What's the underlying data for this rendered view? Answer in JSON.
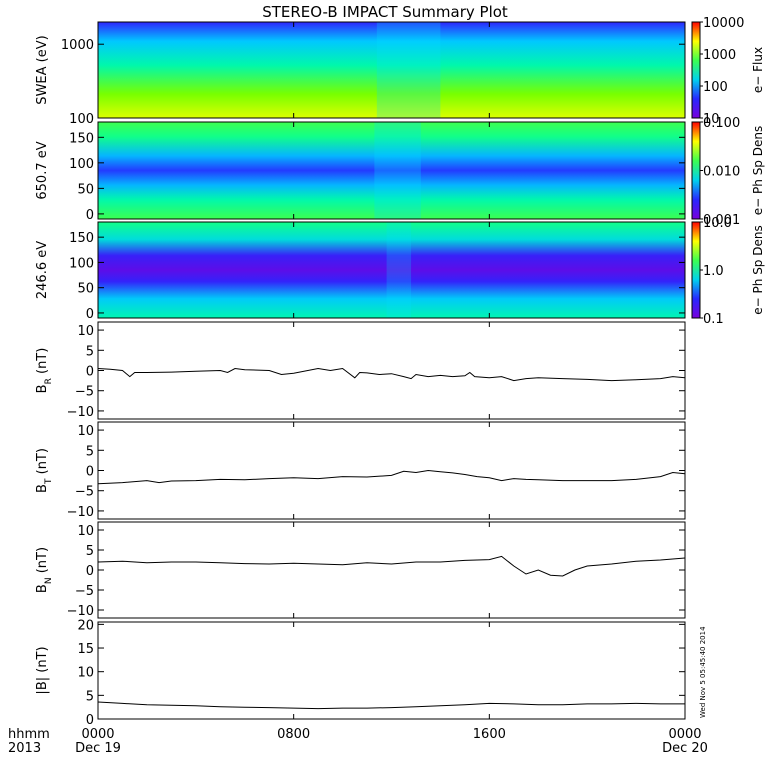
{
  "figure": {
    "title": "STEREO-B IMPACT Summary Plot",
    "stamp": "Wed Nov  5 05:45:40 2014"
  },
  "x_axis": {
    "row1_label": "hhmm",
    "row2_label": "2013",
    "ticks": [
      {
        "hours": 0,
        "label": "0000",
        "date": "Dec 19"
      },
      {
        "hours": 8,
        "label": "0800",
        "date": ""
      },
      {
        "hours": 16,
        "label": "1600",
        "date": ""
      },
      {
        "hours": 24,
        "label": "0000",
        "date": "Dec 20"
      }
    ],
    "range_hours": [
      0,
      24
    ]
  },
  "chart_data": [
    {
      "type": "heatmap",
      "ylabel": "SWEA (eV)",
      "y_scale": "log",
      "ylim": [
        100,
        2000
      ],
      "yticks": [
        {
          "v": 100,
          "label": "100"
        },
        {
          "v": 1000,
          "label": "1000"
        }
      ],
      "colorbar": {
        "label": "e− Flux",
        "scale": "log",
        "range": [
          10,
          10000
        ],
        "ticks": [
          {
            "v": 10,
            "label": "10"
          },
          {
            "v": 100,
            "label": "100"
          },
          {
            "v": 1000,
            "label": "1000"
          },
          {
            "v": 10000,
            "label": "10000"
          }
        ]
      }
    },
    {
      "type": "heatmap",
      "ylabel": "650.7 eV",
      "y_scale": "linear",
      "ylim": [
        -10,
        180
      ],
      "yticks": [
        {
          "v": 0,
          "label": "0"
        },
        {
          "v": 50,
          "label": "50"
        },
        {
          "v": 100,
          "label": "100"
        },
        {
          "v": 150,
          "label": "150"
        }
      ],
      "colorbar": {
        "label": "e− Ph Sp Dens",
        "scale": "log",
        "range": [
          0.001,
          0.1
        ],
        "ticks": [
          {
            "v": 0.001,
            "label": "0.001"
          },
          {
            "v": 0.01,
            "label": "0.010"
          },
          {
            "v": 0.1,
            "label": "0.100"
          }
        ]
      }
    },
    {
      "type": "heatmap",
      "ylabel": "246.6 eV",
      "y_scale": "linear",
      "ylim": [
        -10,
        180
      ],
      "yticks": [
        {
          "v": 0,
          "label": "0"
        },
        {
          "v": 50,
          "label": "50"
        },
        {
          "v": 100,
          "label": "100"
        },
        {
          "v": 150,
          "label": "150"
        }
      ],
      "colorbar": {
        "label": "e− Ph Sp Dens",
        "scale": "log",
        "range": [
          0.1,
          10
        ],
        "ticks": [
          {
            "v": 0.1,
            "label": "0.1"
          },
          {
            "v": 1,
            "label": "1.0"
          },
          {
            "v": 10,
            "label": "10.0"
          }
        ]
      }
    },
    {
      "type": "line",
      "ylabel": "B",
      "ylabel_sub": "R",
      "ylabel_unit": " (nT)",
      "ylim": [
        -12,
        12
      ],
      "yticks": [
        {
          "v": -10,
          "label": "−10"
        },
        {
          "v": -5,
          "label": "−5"
        },
        {
          "v": 0,
          "label": "0"
        },
        {
          "v": 5,
          "label": "5"
        },
        {
          "v": 10,
          "label": "10"
        }
      ],
      "x": [
        0,
        0.5,
        1,
        1.3,
        1.5,
        2,
        3,
        4,
        5,
        5.3,
        5.6,
        6,
        7,
        7.5,
        8,
        9,
        9.5,
        10,
        10.5,
        10.7,
        11,
        11.5,
        12,
        12.5,
        12.8,
        13,
        13.5,
        14,
        14.5,
        15,
        15.2,
        15.4,
        16,
        16.5,
        17,
        17.5,
        18,
        19,
        20,
        21,
        22,
        23,
        23.5,
        24
      ],
      "y": [
        0.5,
        0.3,
        0,
        -1.5,
        -0.5,
        -0.5,
        -0.4,
        -0.2,
        0,
        -0.5,
        0.5,
        0.2,
        0,
        -1,
        -0.7,
        0.5,
        0,
        0.5,
        -1.8,
        -0.5,
        -0.6,
        -1,
        -0.8,
        -1.5,
        -2,
        -1,
        -1.5,
        -1.2,
        -1.5,
        -1.3,
        -0.5,
        -1.5,
        -1.8,
        -1.5,
        -2.5,
        -2,
        -1.8,
        -2,
        -2.2,
        -2.5,
        -2.3,
        -2,
        -1.5,
        -1.8
      ]
    },
    {
      "type": "line",
      "ylabel": "B",
      "ylabel_sub": "T",
      "ylabel_unit": " (nT)",
      "ylim": [
        -12,
        12
      ],
      "yticks": [
        {
          "v": -10,
          "label": "−10"
        },
        {
          "v": -5,
          "label": "−5"
        },
        {
          "v": 0,
          "label": "0"
        },
        {
          "v": 5,
          "label": "5"
        },
        {
          "v": 10,
          "label": "10"
        }
      ],
      "x": [
        0,
        1,
        2,
        2.5,
        3,
        4,
        5,
        6,
        7,
        8,
        9,
        10,
        11,
        12,
        12.5,
        13,
        13.5,
        14,
        14.5,
        15,
        15.5,
        16,
        16.5,
        17,
        17.5,
        18,
        19,
        20,
        21,
        22,
        23,
        23.5,
        24
      ],
      "y": [
        -3.3,
        -3,
        -2.5,
        -3,
        -2.6,
        -2.5,
        -2.2,
        -2.3,
        -2,
        -1.8,
        -2,
        -1.5,
        -1.6,
        -1.2,
        -0.2,
        -0.5,
        0,
        -0.3,
        -0.6,
        -1,
        -1.5,
        -1.8,
        -2.5,
        -2,
        -2.2,
        -2.3,
        -2.5,
        -2.5,
        -2.5,
        -2.2,
        -1.5,
        -0.5,
        -0.8
      ]
    },
    {
      "type": "line",
      "ylabel": "B",
      "ylabel_sub": "N",
      "ylabel_unit": " (nT)",
      "ylim": [
        -12,
        12
      ],
      "yticks": [
        {
          "v": -10,
          "label": "−10"
        },
        {
          "v": -5,
          "label": "−5"
        },
        {
          "v": 0,
          "label": "0"
        },
        {
          "v": 5,
          "label": "5"
        },
        {
          "v": 10,
          "label": "10"
        }
      ],
      "x": [
        0,
        1,
        2,
        3,
        4,
        5,
        6,
        7,
        8,
        9,
        10,
        11,
        12,
        13,
        14,
        15,
        16,
        16.5,
        17,
        17.5,
        18,
        18.5,
        19,
        19.5,
        20,
        21,
        22,
        23,
        24
      ],
      "y": [
        2,
        2.2,
        1.8,
        2,
        2,
        1.8,
        1.6,
        1.5,
        1.7,
        1.5,
        1.3,
        1.8,
        1.5,
        2,
        2,
        2.4,
        2.6,
        3.4,
        1,
        -1,
        0,
        -1.3,
        -1.5,
        0,
        1,
        1.5,
        2.2,
        2.5,
        3
      ]
    },
    {
      "type": "line",
      "ylabel": "|B| (nT)",
      "ylim": [
        0,
        20.5
      ],
      "yticks": [
        {
          "v": 0,
          "label": "0"
        },
        {
          "v": 5,
          "label": "5"
        },
        {
          "v": 10,
          "label": "10"
        },
        {
          "v": 15,
          "label": "15"
        },
        {
          "v": 20,
          "label": "20"
        }
      ],
      "x": [
        0,
        1,
        2,
        3,
        4,
        5,
        6,
        7,
        8,
        9,
        10,
        11,
        12,
        13,
        14,
        15,
        16,
        17,
        18,
        19,
        20,
        21,
        22,
        23,
        24
      ],
      "y": [
        3.6,
        3.3,
        3,
        2.9,
        2.8,
        2.6,
        2.5,
        2.4,
        2.3,
        2.2,
        2.3,
        2.3,
        2.4,
        2.6,
        2.8,
        3,
        3.3,
        3.2,
        3,
        3,
        3.2,
        3.2,
        3.3,
        3.2,
        3.2
      ]
    }
  ]
}
